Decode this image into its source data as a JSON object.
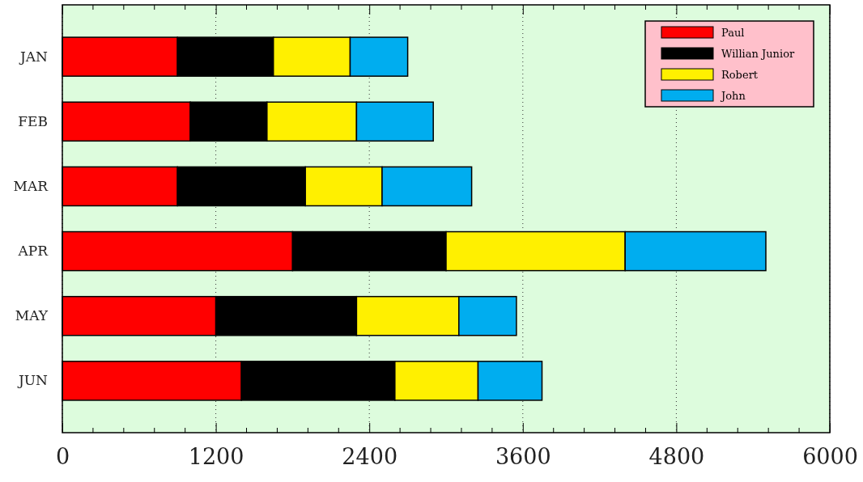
{
  "chart_data": {
    "type": "bar",
    "orientation": "horizontal",
    "stacked": true,
    "categories": [
      "JAN",
      "FEB",
      "MAR",
      "APR",
      "MAY",
      "JUN"
    ],
    "series": [
      {
        "name": "Paul",
        "color": "#ff0000",
        "values": [
          900,
          1000,
          900,
          1800,
          1200,
          1400
        ]
      },
      {
        "name": "Willian Junior",
        "color": "#000000",
        "values": [
          750,
          600,
          1000,
          1200,
          1100,
          1200
        ]
      },
      {
        "name": "Robert",
        "color": "#fff000",
        "values": [
          600,
          700,
          600,
          1400,
          800,
          650
        ]
      },
      {
        "name": "John",
        "color": "#00adef",
        "values": [
          450,
          600,
          700,
          1100,
          450,
          500
        ]
      }
    ],
    "xlim": [
      0,
      6000
    ],
    "xticks": [
      0,
      1200,
      2400,
      3600,
      4800,
      6000
    ],
    "grid": "x",
    "legend": "top right"
  }
}
